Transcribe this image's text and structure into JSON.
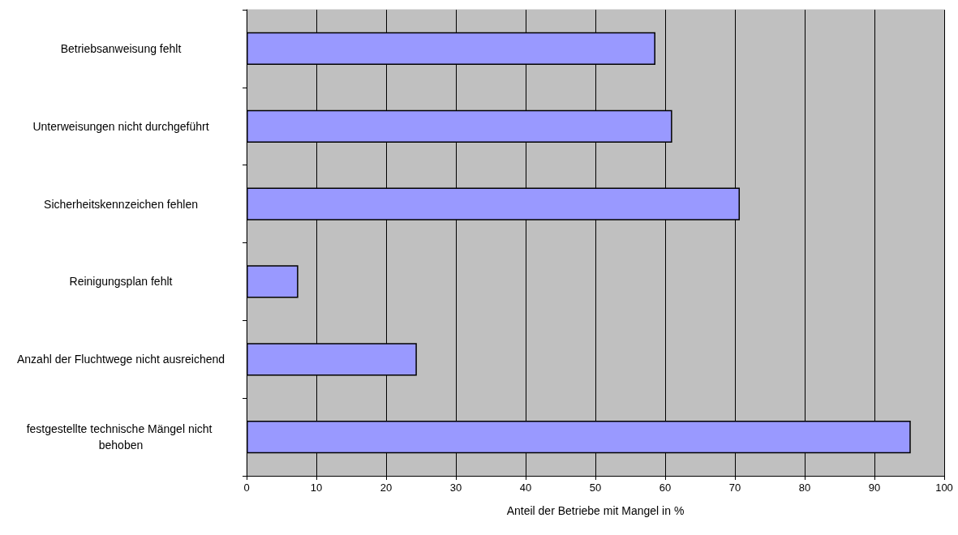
{
  "chart_data": {
    "type": "bar",
    "orientation": "horizontal",
    "xlabel": "Anteil der Betriebe mit Mangel in %",
    "categories": [
      "Betriebsanweisung fehlt",
      "Unterweisungen nicht durchgeführt",
      "Sicherheitskennzeichen fehlen",
      "Reinigungsplan fehlt",
      "Anzahl der Fluchtwege nicht ausreichend",
      "festgestellte technische Mängel nicht behoben"
    ],
    "values": [
      58.6,
      61.0,
      70.7,
      7.4,
      24.4,
      95.2
    ],
    "color": "#9999ff",
    "xlim": [
      0,
      100
    ],
    "xticks": [
      0,
      10,
      20,
      30,
      40,
      50,
      60,
      70,
      80,
      90,
      100
    ],
    "grid": "x"
  }
}
